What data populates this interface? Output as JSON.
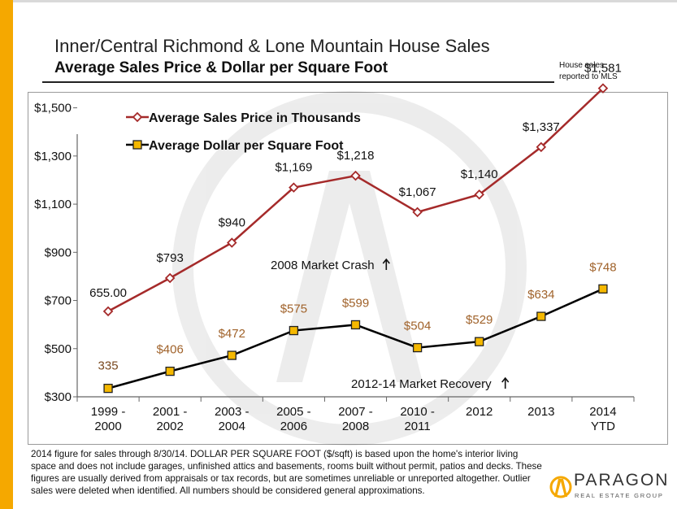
{
  "header": {
    "title": "Inner/Central Richmond & Lone Mountain House Sales",
    "subtitle": "Average Sales Price & Dollar per Square Foot",
    "note_line1": "House sales",
    "note_line2": "reported to MLS"
  },
  "footnote": "2014 figure for sales through 8/30/14. DOLLAR PER SQUARE FOOT ($/sqft) is based upon the home's interior living space and does not include garages, unfinished attics and basements, rooms built without permit, patios and decks. These figures are usually derived from appraisals or tax records, but are sometimes unreliable or unreported altogether. Outlier sales were deleted when identified. All numbers should be considered general approximations.",
  "logo": {
    "name": "PARAGON",
    "tagline": "REAL ESTATE GROUP"
  },
  "colors": {
    "accent_bar": "#f5a800",
    "price_series": "#a52a2a",
    "sqft_series": "#000000",
    "sqft_marker": "#f5b800",
    "sqft_label": "#a0622a"
  },
  "chart_data": {
    "type": "line",
    "title": "Average Sales Price & Dollar per Square Foot",
    "ylim": [
      300,
      1600
    ],
    "yticks": [
      300,
      500,
      700,
      900,
      1100,
      1300,
      1500
    ],
    "ytick_labels": [
      "$300",
      "$500",
      "$700",
      "$900",
      "$1,100",
      "$1,300",
      "$1,500"
    ],
    "categories": [
      [
        "1999 -",
        "2000"
      ],
      [
        "2001 -",
        "2002"
      ],
      [
        "2003 -",
        "2004"
      ],
      [
        "2005 -",
        "2006"
      ],
      [
        "2007 -",
        "2008"
      ],
      [
        "2010 -",
        "2011"
      ],
      [
        "2012",
        ""
      ],
      [
        "2013",
        ""
      ],
      [
        "2014",
        "YTD"
      ]
    ],
    "grid": false,
    "legend_position": "top-left",
    "series": [
      {
        "name": "Average Sales Price in Thousands",
        "marker": "diamond",
        "values": [
          655,
          793,
          940,
          1169,
          1218,
          1067,
          1140,
          1337,
          1581
        ],
        "labels": [
          "655.00",
          "$793",
          "$940",
          "$1,169",
          "$1,218",
          "$1,067",
          "$1,140",
          "$1,337",
          "$1,581"
        ]
      },
      {
        "name": "Average Dollar per Square Foot",
        "marker": "square",
        "values": [
          335,
          406,
          472,
          575,
          599,
          504,
          529,
          634,
          748
        ],
        "labels": [
          "335",
          "$406",
          "$472",
          "$575",
          "$599",
          "$504",
          "$529",
          "$634",
          "$748"
        ]
      }
    ],
    "annotations": [
      {
        "text": "2008 Market Crash",
        "arrow": "up"
      },
      {
        "text": "2012-14 Market Recovery",
        "arrow": "up"
      }
    ]
  }
}
